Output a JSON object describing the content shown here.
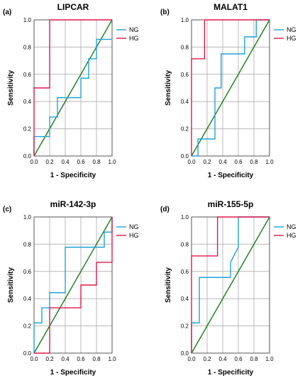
{
  "chart_data": [
    {
      "type": "line",
      "panel": "(a)",
      "title": "LIPCAR",
      "xlabel": "1 - Specificity",
      "ylabel": "Sensitivity",
      "xlim": [
        0,
        1
      ],
      "ylim": [
        0,
        1
      ],
      "xticks": [
        "0.0",
        "0.2",
        "0.4",
        "0.6",
        "0.8",
        "1.0"
      ],
      "yticks": [
        "0.0",
        "0.2",
        "0.4",
        "0.6",
        "0.8",
        "1.0"
      ],
      "grid": true,
      "legend_position": "top-right",
      "series": [
        {
          "name": "NG",
          "color": "#1fa2d8",
          "x": [
            0,
            0,
            0.2,
            0.2,
            0.3,
            0.3,
            0.6,
            0.6,
            0.7,
            0.7,
            0.8,
            0.8,
            1.0
          ],
          "y": [
            0,
            0.143,
            0.143,
            0.286,
            0.286,
            0.429,
            0.429,
            0.571,
            0.571,
            0.714,
            0.714,
            0.857,
            0.857
          ]
        },
        {
          "name": "HG",
          "color": "#e0184b",
          "x": [
            0,
            0,
            0.2,
            0.2,
            1.0
          ],
          "y": [
            0,
            0.5,
            0.5,
            1.0,
            1.0
          ]
        }
      ],
      "reference": {
        "color": "#1a7a1a",
        "x": [
          0,
          1
        ],
        "y": [
          0,
          1
        ]
      }
    },
    {
      "type": "line",
      "panel": "(b)",
      "title": "MALAT1",
      "xlabel": "1 - Specificity",
      "ylabel": "Sensitivity",
      "xlim": [
        0,
        1
      ],
      "ylim": [
        0,
        1
      ],
      "xticks": [
        "0.0",
        "0.2",
        "0.4",
        "0.6",
        "0.8",
        "1.0"
      ],
      "yticks": [
        "0.0",
        "0.2",
        "0.4",
        "0.6",
        "0.8",
        "1.0"
      ],
      "grid": true,
      "legend_position": "top-right",
      "series": [
        {
          "name": "NG",
          "color": "#1fa2d8",
          "x": [
            0,
            0.083,
            0.083,
            0.3,
            0.3,
            0.38,
            0.38,
            0.68,
            0.68,
            0.83,
            0.83,
            1.0
          ],
          "y": [
            0,
            0,
            0.125,
            0.125,
            0.5,
            0.5,
            0.75,
            0.75,
            0.875,
            0.875,
            1.0,
            1.0
          ]
        },
        {
          "name": "HG",
          "color": "#e0184b",
          "x": [
            0,
            0,
            0.167,
            0.167,
            1.0
          ],
          "y": [
            0,
            0.714,
            0.714,
            1.0,
            1.0
          ]
        }
      ],
      "reference": {
        "color": "#1a7a1a",
        "x": [
          0,
          1
        ],
        "y": [
          0,
          1
        ]
      }
    },
    {
      "type": "line",
      "panel": "(c)",
      "title": "miR-142-3p",
      "xlabel": "1 - Specificity",
      "ylabel": "Sensitivity",
      "xlim": [
        0,
        1
      ],
      "ylim": [
        0,
        1
      ],
      "xticks": [
        "0.0",
        "0.2",
        "0.4",
        "0.6",
        "0.8",
        "1.0"
      ],
      "yticks": [
        "0.0",
        "0.2",
        "0.4",
        "0.6",
        "0.8",
        "1.0"
      ],
      "grid": true,
      "legend_position": "top-right",
      "series": [
        {
          "name": "NG",
          "color": "#1fa2d8",
          "x": [
            0,
            0,
            0.1,
            0.1,
            0.2,
            0.2,
            0.4,
            0.4,
            0.9,
            0.9,
            1.0,
            1.0
          ],
          "y": [
            0,
            0.222,
            0.222,
            0.333,
            0.333,
            0.444,
            0.444,
            0.778,
            0.778,
            0.889,
            0.889,
            1.0
          ]
        },
        {
          "name": "HG",
          "color": "#e0184b",
          "x": [
            0,
            0.2,
            0.2,
            0.6,
            0.6,
            0.8,
            0.8,
            1.0,
            1.0
          ],
          "y": [
            0,
            0,
            0.333,
            0.333,
            0.5,
            0.5,
            0.667,
            0.667,
            1.0
          ]
        }
      ],
      "reference": {
        "color": "#1a7a1a",
        "x": [
          0,
          1
        ],
        "y": [
          0,
          1
        ]
      }
    },
    {
      "type": "line",
      "panel": "(d)",
      "title": "miR-155-5p",
      "xlabel": "1 - Specificity",
      "ylabel": "Sensitivity",
      "xlim": [
        0,
        1
      ],
      "ylim": [
        0,
        1
      ],
      "xticks": [
        "0.0",
        "0.2",
        "0.4",
        "0.6",
        "0.8",
        "1.0"
      ],
      "yticks": [
        "0.0",
        "0.2",
        "0.4",
        "0.6",
        "0.8",
        "1.0"
      ],
      "grid": true,
      "legend_position": "top-right",
      "series": [
        {
          "name": "NG",
          "color": "#1fa2d8",
          "x": [
            0,
            0,
            0.1,
            0.1,
            0.5,
            0.5,
            0.6,
            0.6,
            1.0
          ],
          "y": [
            0,
            0.222,
            0.222,
            0.556,
            0.556,
            0.667,
            0.778,
            1.0,
            1.0
          ]
        },
        {
          "name": "HG",
          "color": "#e0184b",
          "x": [
            0,
            0,
            0.333,
            0.333,
            1.0
          ],
          "y": [
            0,
            0.714,
            0.714,
            1.0,
            1.0
          ]
        }
      ],
      "reference": {
        "color": "#1a7a1a",
        "x": [
          0,
          1
        ],
        "y": [
          0,
          1
        ]
      }
    }
  ]
}
